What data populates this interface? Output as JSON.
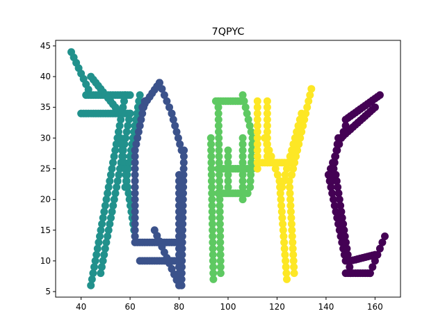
{
  "chart_data": {
    "type": "scatter",
    "title": "7QPYC",
    "xlabel": "",
    "ylabel": "",
    "xlim": [
      29.6,
      170.4
    ],
    "ylim": [
      4.1,
      45.9
    ],
    "xticks": [
      40,
      60,
      80,
      100,
      120,
      140,
      160
    ],
    "yticks": [
      5,
      10,
      15,
      20,
      25,
      30,
      35,
      40,
      45
    ],
    "grid": false,
    "legend": "none",
    "series": [
      {
        "color": "#21918c",
        "segments": [
          {
            "from": [
              36,
              44
            ],
            "to": [
              44,
              37
            ]
          },
          {
            "from": [
              42,
              37
            ],
            "to": [
              60,
              37
            ]
          },
          {
            "from": [
              40,
              34
            ],
            "to": [
              60,
              34
            ]
          },
          {
            "from": [
              44,
              40
            ],
            "to": [
              56,
              34
            ]
          },
          {
            "from": [
              58,
              37
            ],
            "to": [
              44,
              6
            ]
          },
          {
            "from": [
              60,
              34
            ],
            "to": [
              48,
              8
            ]
          },
          {
            "from": [
              56,
              30
            ],
            "to": [
              62,
              14
            ]
          },
          {
            "from": [
              64,
              37
            ],
            "to": [
              58,
              22
            ]
          }
        ]
      },
      {
        "color": "#3b528b",
        "segments": [
          {
            "from": [
              65,
              35
            ],
            "to": [
              72,
              39
            ]
          },
          {
            "from": [
              72,
              39
            ],
            "to": [
              77,
              34
            ]
          },
          {
            "from": [
              77,
              34
            ],
            "to": [
              81,
              28
            ]
          },
          {
            "from": [
              82,
              28
            ],
            "to": [
              81,
              6
            ]
          },
          {
            "from": [
              80,
              24
            ],
            "to": [
              80,
              8
            ]
          },
          {
            "from": [
              66,
              36
            ],
            "to": [
              62,
              28
            ]
          },
          {
            "from": [
              62,
              28
            ],
            "to": [
              62,
              14
            ]
          },
          {
            "from": [
              62,
              13
            ],
            "to": [
              80,
              13
            ]
          },
          {
            "from": [
              64,
              10
            ],
            "to": [
              80,
              10
            ]
          },
          {
            "from": [
              70,
              15
            ],
            "to": [
              80,
              6
            ]
          }
        ]
      },
      {
        "color": "#5ec962",
        "segments": [
          {
            "from": [
              93,
              30
            ],
            "to": [
              94,
              7
            ]
          },
          {
            "from": [
              96,
              36
            ],
            "to": [
              97,
              8
            ]
          },
          {
            "from": [
              95,
              36
            ],
            "to": [
              106,
              36
            ]
          },
          {
            "from": [
              106,
              37
            ],
            "to": [
              110,
              30
            ]
          },
          {
            "from": [
              110,
              30
            ],
            "to": [
              109,
              22
            ]
          },
          {
            "from": [
              106,
              30
            ],
            "to": [
              106,
              20
            ]
          },
          {
            "from": [
              96,
              21
            ],
            "to": [
              108,
              21
            ]
          },
          {
            "from": [
              96,
              25
            ],
            "to": [
              110,
              25
            ]
          },
          {
            "from": [
              100,
              28
            ],
            "to": [
              100,
              22
            ]
          }
        ]
      },
      {
        "color": "#fde725",
        "segments": [
          {
            "from": [
              112,
              36
            ],
            "to": [
              112,
              25
            ]
          },
          {
            "from": [
              116,
              36
            ],
            "to": [
              116,
              26
            ]
          },
          {
            "from": [
              112,
              26
            ],
            "to": [
              126,
              26
            ]
          },
          {
            "from": [
              115,
              30
            ],
            "to": [
              122,
              22
            ]
          },
          {
            "from": [
              134,
              38
            ],
            "to": [
              126,
              24
            ]
          },
          {
            "from": [
              130,
              34
            ],
            "to": [
              122,
              22
            ]
          },
          {
            "from": [
              121,
              23
            ],
            "to": [
              124,
              7
            ]
          },
          {
            "from": [
              125,
              23
            ],
            "to": [
              127,
              8
            ]
          }
        ]
      },
      {
        "color": "#440154",
        "segments": [
          {
            "from": [
              162,
              37
            ],
            "to": [
              148,
              33
            ]
          },
          {
            "from": [
              160,
              35
            ],
            "to": [
              146,
              30
            ]
          },
          {
            "from": [
              148,
              32
            ],
            "to": [
              141,
              24
            ]
          },
          {
            "from": [
              145,
              30
            ],
            "to": [
              142,
              22
            ]
          },
          {
            "from": [
              141,
              24
            ],
            "to": [
              148,
              10
            ]
          },
          {
            "from": [
              144,
              24
            ],
            "to": [
              150,
              8
            ]
          },
          {
            "from": [
              148,
              8
            ],
            "to": [
              158,
              8
            ]
          },
          {
            "from": [
              150,
              10
            ],
            "to": [
              160,
              11
            ]
          },
          {
            "from": [
              158,
              8
            ],
            "to": [
              164,
              14
            ]
          }
        ]
      }
    ]
  }
}
